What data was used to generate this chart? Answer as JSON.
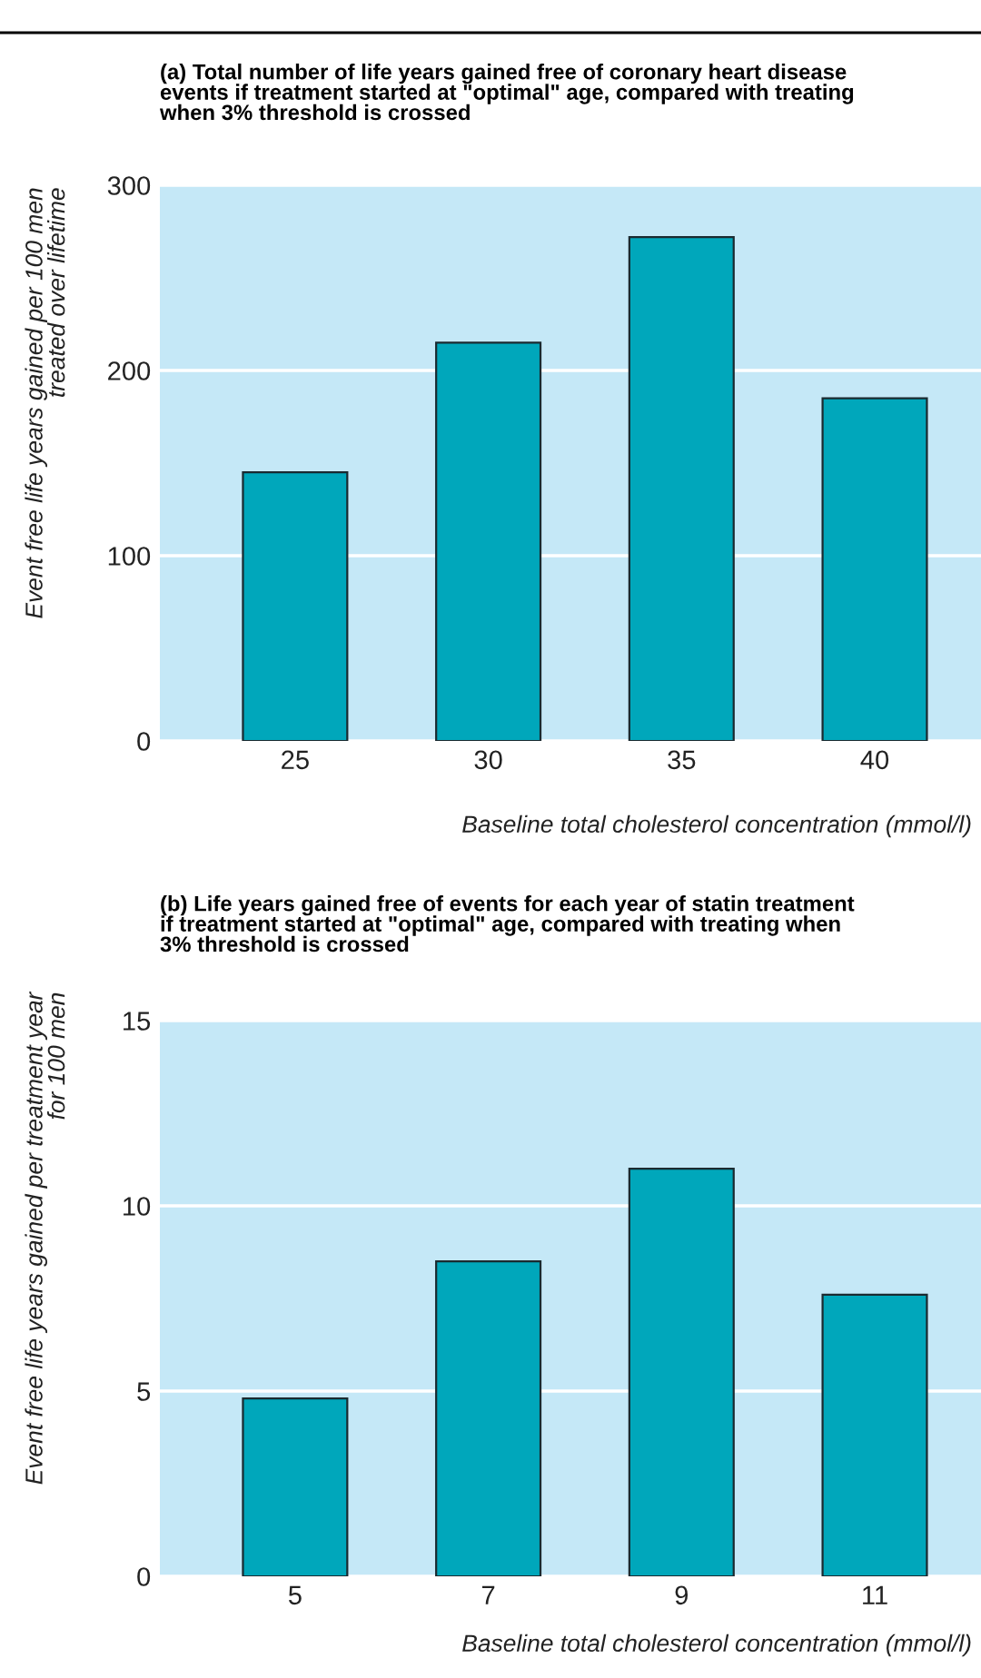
{
  "chart_data": [
    {
      "type": "bar",
      "title": "(a) Total number of life years gained free of coronary heart disease\nevents if treatment started at \"optimal\" age, compared with treating\nwhen 3% threshold is crossed",
      "xlabel": "Baseline total cholesterol concentration (mmol/l)",
      "ylabel": "Event free life years gained per 100 men\ntreated over lifetime",
      "categories": [
        "25",
        "30",
        "35",
        "40"
      ],
      "values": [
        145,
        215,
        272,
        185
      ],
      "color": "#00a7bb",
      "ylim": [
        0,
        300
      ],
      "yticks": [
        0,
        100,
        200,
        300
      ],
      "grid": "y"
    },
    {
      "type": "bar",
      "title": "(b) Life years gained free of events for each year of statin treatment\nif treatment started at \"optimal\" age, compared with treating when\n3% threshold is crossed",
      "xlabel": "Baseline total cholesterol concentration (mmol/l)",
      "ylabel": "Event free life years gained per treatment year\nfor 100 men",
      "categories": [
        "5",
        "7",
        "9",
        "11"
      ],
      "values": [
        4.8,
        8.5,
        11.0,
        7.6
      ],
      "color": "#00a7bb",
      "ylim": [
        0,
        15
      ],
      "yticks": [
        0,
        5,
        10,
        15
      ],
      "grid": "y"
    }
  ]
}
